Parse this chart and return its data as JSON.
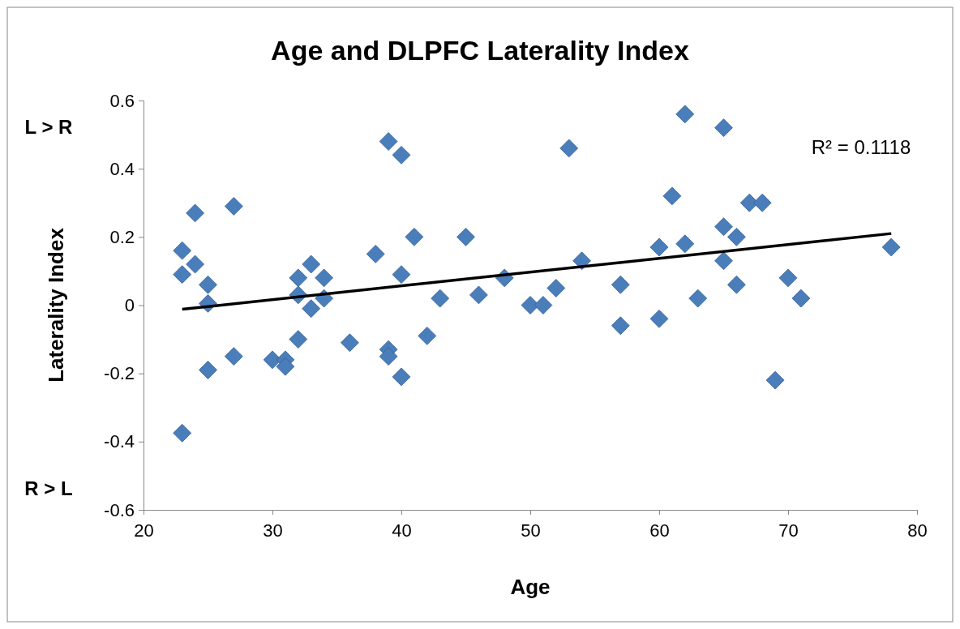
{
  "chart_data": {
    "type": "scatter",
    "title": "Age and DLPFC Laterality Index",
    "xlabel": "Age",
    "ylabel": "Laterality Index",
    "xlim": [
      20,
      80
    ],
    "xticks": [
      20,
      30,
      40,
      50,
      60,
      70,
      80
    ],
    "ylim": [
      -0.6,
      0.6
    ],
    "yticks": [
      -0.6,
      -0.4,
      -0.2,
      0,
      0.2,
      0.4,
      0.6
    ],
    "grid": false,
    "annotations": [
      "R² = 0.1118",
      "L > R",
      "R > L"
    ],
    "series": [
      {
        "marker": "diamond",
        "color": "#4a7ebb",
        "x": [
          23,
          23,
          23,
          24,
          24,
          25,
          25,
          25,
          27,
          27,
          30,
          31,
          31,
          32,
          32,
          32,
          33,
          33,
          34,
          34,
          36,
          38,
          39,
          39,
          39,
          40,
          40,
          40,
          41,
          42,
          43,
          45,
          46,
          48,
          50,
          51,
          52,
          53,
          54,
          57,
          57,
          60,
          60,
          61,
          62,
          62,
          63,
          65,
          65,
          65,
          66,
          66,
          67,
          68,
          69,
          70,
          71,
          78
        ],
        "values": [
          0.16,
          0.09,
          -0.375,
          0.27,
          0.12,
          0.06,
          0.005,
          -0.19,
          0.29,
          -0.15,
          -0.16,
          -0.16,
          -0.18,
          0.08,
          0.03,
          -0.1,
          0.12,
          -0.01,
          0.08,
          0.02,
          -0.11,
          0.15,
          0.48,
          -0.13,
          -0.15,
          0.44,
          0.09,
          -0.21,
          0.2,
          -0.09,
          0.02,
          0.2,
          0.03,
          0.08,
          0,
          0,
          0.05,
          0.46,
          0.13,
          0.06,
          -0.06,
          0.17,
          -0.04,
          0.32,
          0.56,
          0.18,
          0.02,
          0.52,
          0.23,
          0.13,
          0.2,
          0.06,
          0.3,
          0.3,
          -0.22,
          0.08,
          0.02,
          0.17
        ]
      },
      {
        "type": "line",
        "color": "#000000",
        "line_style": "solid",
        "x": [
          23,
          78
        ],
        "values": [
          -0.012,
          0.21
        ]
      }
    ]
  }
}
